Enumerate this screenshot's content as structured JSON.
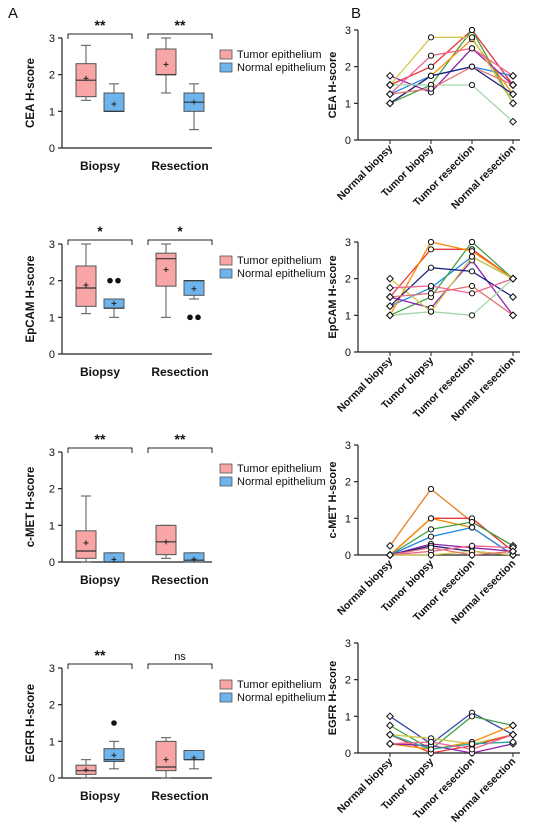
{
  "panels": {
    "a": "A",
    "b": "B"
  },
  "colors": {
    "tumor_fill": "#F7A5A5",
    "tumor_stroke": "#C95C5C",
    "normal_fill": "#6EB4EC",
    "normal_stroke": "#3F82BF",
    "axis": "#222222"
  },
  "chart_data": [
    {
      "type": "box",
      "panel": "A",
      "ylabel": "CEA H-score",
      "ylim": [
        0,
        3
      ],
      "yticks": [
        0,
        1,
        2,
        3
      ],
      "categories": [
        "Biopsy",
        "Resection"
      ],
      "legend": [
        "Tumor epithelium",
        "Normal epithelium"
      ],
      "significance": [
        "**",
        "**"
      ],
      "groups": [
        {
          "category": "Biopsy",
          "series": "Tumor epithelium",
          "min": 1.3,
          "q1": 1.4,
          "median": 1.85,
          "q3": 2.3,
          "max": 2.8,
          "mean": 1.9,
          "outliers": []
        },
        {
          "category": "Biopsy",
          "series": "Normal epithelium",
          "min": 1.0,
          "q1": 1.0,
          "median": 1.0,
          "q3": 1.5,
          "max": 1.75,
          "mean": 1.2,
          "outliers": []
        },
        {
          "category": "Resection",
          "series": "Tumor epithelium",
          "min": 1.5,
          "q1": 2.0,
          "median": 2.0,
          "q3": 2.7,
          "max": 3.0,
          "mean": 2.28,
          "outliers": []
        },
        {
          "category": "Resection",
          "series": "Normal epithelium",
          "min": 0.5,
          "q1": 1.0,
          "median": 1.25,
          "q3": 1.5,
          "max": 1.75,
          "mean": 1.25,
          "outliers": []
        }
      ]
    },
    {
      "type": "box",
      "panel": "A",
      "ylabel": "EpCAM H-score",
      "ylim": [
        0,
        3
      ],
      "yticks": [
        0,
        1,
        2,
        3
      ],
      "categories": [
        "Biopsy",
        "Resection"
      ],
      "legend": [
        "Tumor epithelium",
        "Normal epithelium"
      ],
      "significance": [
        "*",
        "*"
      ],
      "groups": [
        {
          "category": "Biopsy",
          "series": "Tumor epithelium",
          "min": 1.1,
          "q1": 1.3,
          "median": 1.8,
          "q3": 2.4,
          "max": 3.0,
          "mean": 1.88,
          "outliers": []
        },
        {
          "category": "Biopsy",
          "series": "Normal epithelium",
          "min": 1.0,
          "q1": 1.25,
          "median": 1.25,
          "q3": 1.5,
          "max": 1.5,
          "mean": 1.38,
          "outliers": [
            2.0,
            2.0
          ]
        },
        {
          "category": "Resection",
          "series": "Tumor epithelium",
          "min": 1.0,
          "q1": 1.85,
          "median": 2.6,
          "q3": 2.75,
          "max": 3.0,
          "mean": 2.3,
          "outliers": []
        },
        {
          "category": "Resection",
          "series": "Normal epithelium",
          "min": 1.5,
          "q1": 1.6,
          "median": 2.0,
          "q3": 2.0,
          "max": 2.0,
          "mean": 1.78,
          "outliers": [
            1.0,
            1.0
          ]
        }
      ]
    },
    {
      "type": "box",
      "panel": "A",
      "ylabel": "c-MET H-score",
      "ylim": [
        0,
        3
      ],
      "yticks": [
        0,
        1,
        2,
        3
      ],
      "categories": [
        "Biopsy",
        "Resection"
      ],
      "legend": [
        "Tumor epithelium",
        "Normal epithelium"
      ],
      "significance": [
        "**",
        "**"
      ],
      "groups": [
        {
          "category": "Biopsy",
          "series": "Tumor epithelium",
          "min": 0.0,
          "q1": 0.1,
          "median": 0.3,
          "q3": 0.85,
          "max": 1.8,
          "mean": 0.52,
          "outliers": []
        },
        {
          "category": "Biopsy",
          "series": "Normal epithelium",
          "min": 0.0,
          "q1": 0.0,
          "median": 0.0,
          "q3": 0.25,
          "max": 0.25,
          "mean": 0.07,
          "outliers": []
        },
        {
          "category": "Resection",
          "series": "Tumor epithelium",
          "min": 0.1,
          "q1": 0.2,
          "median": 0.55,
          "q3": 1.0,
          "max": 1.0,
          "mean": 0.55,
          "outliers": []
        },
        {
          "category": "Resection",
          "series": "Normal epithelium",
          "min": 0.0,
          "q1": 0.0,
          "median": 0.05,
          "q3": 0.25,
          "max": 0.25,
          "mean": 0.08,
          "outliers": []
        }
      ]
    },
    {
      "type": "box",
      "panel": "A",
      "ylabel": "EGFR H-score",
      "ylim": [
        0,
        3
      ],
      "yticks": [
        0,
        1,
        2,
        3
      ],
      "categories": [
        "Biopsy",
        "Resection"
      ],
      "legend": [
        "Tumor epithelium",
        "Normal epithelium"
      ],
      "significance": [
        "**",
        "ns"
      ],
      "groups": [
        {
          "category": "Biopsy",
          "series": "Tumor epithelium",
          "min": 0.0,
          "q1": 0.1,
          "median": 0.2,
          "q3": 0.35,
          "max": 0.5,
          "mean": 0.22,
          "outliers": []
        },
        {
          "category": "Biopsy",
          "series": "Normal epithelium",
          "min": 0.25,
          "q1": 0.45,
          "median": 0.5,
          "q3": 0.8,
          "max": 1.0,
          "mean": 0.62,
          "outliers": [
            1.5
          ]
        },
        {
          "category": "Resection",
          "series": "Tumor epithelium",
          "min": 0.0,
          "q1": 0.2,
          "median": 0.3,
          "q3": 1.0,
          "max": 1.1,
          "mean": 0.5,
          "outliers": []
        },
        {
          "category": "Resection",
          "series": "Normal epithelium",
          "min": 0.25,
          "q1": 0.5,
          "median": 0.5,
          "q3": 0.75,
          "max": 0.75,
          "mean": 0.55,
          "outliers": []
        }
      ]
    },
    {
      "type": "line",
      "panel": "B",
      "ylabel": "CEA H-score",
      "ylim": [
        0,
        3
      ],
      "yticks": [
        0,
        1,
        2,
        3
      ],
      "x": [
        "Normal biopsy",
        "Tumor biopsy",
        "Tumor resection",
        "Normal resection"
      ],
      "series": [
        {
          "color": "#E53935",
          "values": [
            1.5,
            2.0,
            3.0,
            1.5
          ]
        },
        {
          "color": "#1E88E5",
          "values": [
            1.25,
            1.75,
            2.0,
            1.75
          ]
        },
        {
          "color": "#43A047",
          "values": [
            1.0,
            1.5,
            3.0,
            1.0
          ]
        },
        {
          "color": "#FB8C00",
          "values": [
            1.0,
            1.75,
            2.75,
            1.25
          ]
        },
        {
          "color": "#8E24AA",
          "values": [
            1.75,
            1.3,
            2.5,
            1.5
          ]
        },
        {
          "color": "#D4C84A",
          "values": [
            1.5,
            2.8,
            2.8,
            1.0
          ]
        },
        {
          "color": "#1A237E",
          "values": [
            1.0,
            1.75,
            2.0,
            1.25
          ]
        },
        {
          "color": "#F06292",
          "values": [
            1.25,
            2.3,
            2.5,
            1.75
          ]
        },
        {
          "color": "#A5D6A7",
          "values": [
            1.5,
            1.5,
            1.5,
            0.5
          ]
        },
        {
          "color": "#E57373",
          "values": [
            1.25,
            1.4,
            2.0,
            1.5
          ]
        }
      ]
    },
    {
      "type": "line",
      "panel": "B",
      "ylabel": "EpCAM H-score",
      "ylim": [
        0,
        3
      ],
      "yticks": [
        0,
        1,
        2,
        3
      ],
      "x": [
        "Normal biopsy",
        "Tumor biopsy",
        "Tumor resection",
        "Normal resection"
      ],
      "series": [
        {
          "color": "#E53935",
          "values": [
            1.5,
            2.8,
            2.8,
            2.0
          ]
        },
        {
          "color": "#1E88E5",
          "values": [
            1.25,
            1.75,
            2.6,
            2.0
          ]
        },
        {
          "color": "#43A047",
          "values": [
            1.0,
            1.5,
            3.0,
            2.0
          ]
        },
        {
          "color": "#FB8C00",
          "values": [
            1.0,
            3.0,
            2.75,
            2.0
          ]
        },
        {
          "color": "#8E24AA",
          "values": [
            1.5,
            1.2,
            2.5,
            1.0
          ]
        },
        {
          "color": "#D4C84A",
          "values": [
            2.0,
            1.1,
            2.6,
            2.0
          ]
        },
        {
          "color": "#1A237E",
          "values": [
            1.25,
            2.3,
            2.2,
            1.5
          ]
        },
        {
          "color": "#F06292",
          "values": [
            1.75,
            1.8,
            1.6,
            2.0
          ]
        },
        {
          "color": "#A5D6A7",
          "values": [
            1.0,
            1.1,
            1.0,
            2.0
          ]
        },
        {
          "color": "#E57373",
          "values": [
            1.5,
            1.6,
            1.8,
            1.0
          ]
        }
      ]
    },
    {
      "type": "line",
      "panel": "B",
      "ylabel": "c-MET H-score",
      "ylim": [
        0,
        3
      ],
      "yticks": [
        0,
        1,
        2,
        3
      ],
      "x": [
        "Normal biopsy",
        "Tumor biopsy",
        "Tumor resection",
        "Normal resection"
      ],
      "series": [
        {
          "color": "#E67E22",
          "values": [
            0.25,
            1.8,
            0.9,
            0.25
          ]
        },
        {
          "color": "#E53935",
          "values": [
            0.0,
            1.0,
            1.0,
            0.1
          ]
        },
        {
          "color": "#FB8C00",
          "values": [
            0.0,
            1.0,
            0.75,
            0.0
          ]
        },
        {
          "color": "#43A047",
          "values": [
            0.0,
            0.7,
            0.9,
            0.25
          ]
        },
        {
          "color": "#1E88E5",
          "values": [
            0.0,
            0.5,
            0.75,
            0.0
          ]
        },
        {
          "color": "#8E24AA",
          "values": [
            0.0,
            0.3,
            0.2,
            0.1
          ]
        },
        {
          "color": "#1A237E",
          "values": [
            0.0,
            0.25,
            0.1,
            0.0
          ]
        },
        {
          "color": "#F06292",
          "values": [
            0.0,
            0.1,
            0.25,
            0.2
          ]
        },
        {
          "color": "#D4C84A",
          "values": [
            0.0,
            0.0,
            0.1,
            0.0
          ]
        },
        {
          "color": "#E57373",
          "values": [
            0.0,
            0.2,
            0.0,
            0.1
          ]
        }
      ]
    },
    {
      "type": "line",
      "panel": "B",
      "ylabel": "EGFR H-score",
      "ylim": [
        0,
        3
      ],
      "yticks": [
        0,
        1,
        2,
        3
      ],
      "x": [
        "Normal biopsy",
        "Tumor biopsy",
        "Tumor resection",
        "Normal resection"
      ],
      "series": [
        {
          "color": "#3949AB",
          "values": [
            1.0,
            0.25,
            1.1,
            0.5
          ]
        },
        {
          "color": "#43A047",
          "values": [
            0.75,
            0.1,
            1.0,
            0.75
          ]
        },
        {
          "color": "#D4C84A",
          "values": [
            0.5,
            0.4,
            0.25,
            0.5
          ]
        },
        {
          "color": "#E53935",
          "values": [
            0.5,
            0.0,
            0.2,
            0.5
          ]
        },
        {
          "color": "#FB8C00",
          "values": [
            0.25,
            0.1,
            0.3,
            0.75
          ]
        },
        {
          "color": "#8E24AA",
          "values": [
            0.25,
            0.2,
            0.0,
            0.25
          ]
        },
        {
          "color": "#26A69A",
          "values": [
            0.5,
            0.1,
            0.25,
            0.3
          ]
        },
        {
          "color": "#F06292",
          "values": [
            0.25,
            0.3,
            0.1,
            0.5
          ]
        }
      ]
    }
  ]
}
